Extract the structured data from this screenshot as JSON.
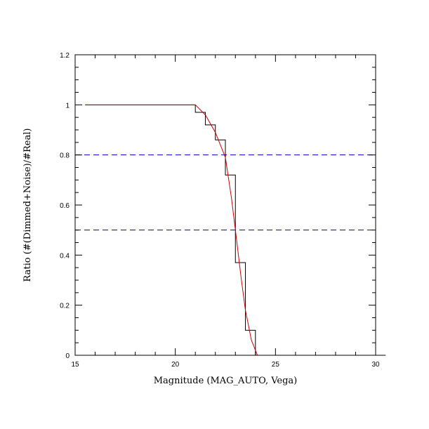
{
  "chart_data": {
    "type": "line",
    "title": "",
    "xlabel": "Magnitude (MAG_AUTO, Vega)",
    "ylabel": "Ratio (#(Dimmed+Noise)/#Real)",
    "xlim": [
      15,
      30
    ],
    "ylim": [
      0,
      1.2
    ],
    "x_ticks": [
      15,
      20,
      25,
      30
    ],
    "x_tick_labels": [
      "15",
      "20",
      "25",
      "30"
    ],
    "y_ticks": [
      0,
      0.2,
      0.4,
      0.6,
      0.8,
      1,
      1.2
    ],
    "y_tick_labels": [
      "0",
      "0.2",
      "0.4",
      "0.6",
      "0.8",
      "1",
      "1.2"
    ],
    "grid": false,
    "reference_lines": [
      {
        "y": 0.8,
        "color": "#0000cc",
        "style": "dashed"
      },
      {
        "y": 0.5,
        "color": "#0000cc",
        "style": "dashed"
      }
    ],
    "series": [
      {
        "type": "step",
        "color": "#000000",
        "x": [
          15.5,
          16.0,
          16.5,
          17.0,
          17.5,
          18.0,
          18.5,
          19.0,
          19.5,
          20.0,
          20.5,
          21.0,
          21.5,
          22.0,
          22.5,
          23.0,
          23.5,
          24.0,
          24.5,
          25.0,
          25.5,
          26.0,
          26.5,
          27.0,
          27.5,
          28.0,
          28.5,
          29.0,
          29.5,
          30.0
        ],
        "values": [
          1.0,
          1.0,
          1.0,
          1.0,
          1.0,
          1.0,
          1.0,
          1.0,
          1.0,
          1.0,
          1.0,
          0.97,
          0.92,
          0.86,
          0.72,
          0.37,
          0.1,
          0.0,
          0.0,
          0.0,
          0.0,
          0.0,
          0.0,
          0.0,
          0.0,
          0.0,
          0.0,
          0.0,
          0.0,
          0.0
        ]
      },
      {
        "type": "line",
        "color": "#cc0000",
        "x": [
          15.5,
          16.0,
          17.0,
          18.0,
          19.0,
          20.0,
          21.0,
          21.5,
          22.0,
          22.5,
          22.8,
          23.0,
          23.3,
          23.5,
          23.8,
          24.1,
          24.5,
          25.0,
          26.0,
          27.0,
          28.0,
          29.0,
          30.0
        ],
        "values": [
          1.0,
          1.0,
          1.0,
          1.0,
          1.0,
          1.0,
          1.0,
          0.96,
          0.89,
          0.79,
          0.63,
          0.5,
          0.3,
          0.18,
          0.06,
          0.0,
          0.0,
          0.0,
          0.0,
          0.0,
          0.0,
          0.0,
          0.0
        ]
      }
    ]
  }
}
